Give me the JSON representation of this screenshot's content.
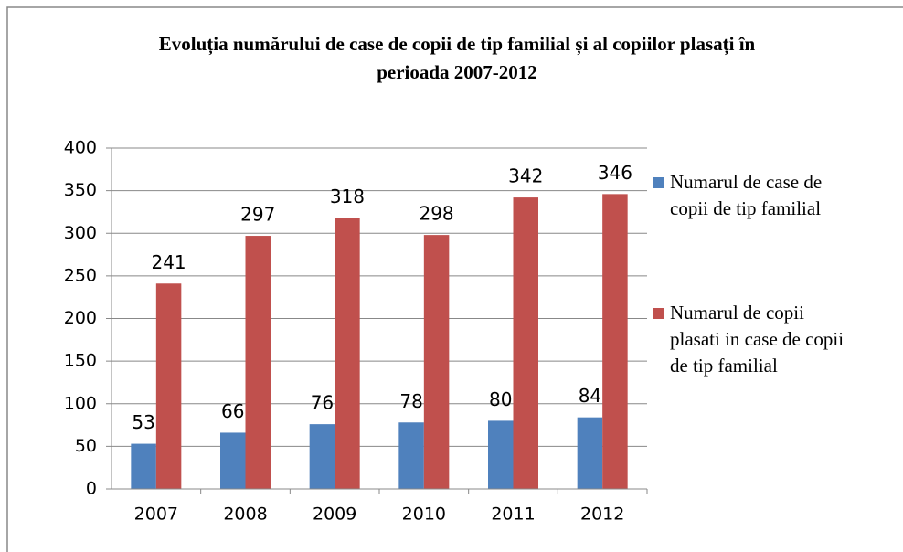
{
  "chart_data": {
    "type": "bar",
    "title": "Evoluția numărului de case de copii de tip familial și al copiilor plasați în perioada 2007-2012",
    "categories": [
      "2007",
      "2008",
      "2009",
      "2010",
      "2011",
      "2012"
    ],
    "series": [
      {
        "name": "Numarul de case de copii de tip familial",
        "color": "#4f81bd",
        "values": [
          53,
          66,
          76,
          78,
          80,
          84
        ]
      },
      {
        "name": "Numarul de copii plasati in case de copii de tip familial",
        "color": "#c0504d",
        "values": [
          241,
          297,
          318,
          298,
          342,
          346
        ]
      }
    ],
    "ylim": [
      0,
      400
    ],
    "yticks": [
      0,
      50,
      100,
      150,
      200,
      250,
      300,
      350,
      400
    ],
    "grid": true,
    "legend": "right"
  }
}
